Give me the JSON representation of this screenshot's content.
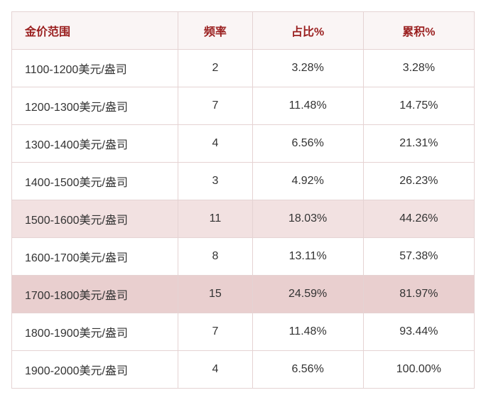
{
  "colors": {
    "border": "#e5d3d3",
    "header_bg": "#faf5f5",
    "header_text": "#9a1f1f",
    "row_text": "#333333",
    "highlight_light": "#f2e1e1",
    "highlight_dark": "#e9cfcf",
    "background": "#ffffff"
  },
  "typography": {
    "font_family": "PingFang SC / Microsoft YaHei",
    "font_size_pt": 12,
    "header_weight": 700
  },
  "table": {
    "type": "table",
    "column_widths_pct": [
      36,
      16,
      24,
      24
    ],
    "columns": [
      "金价范围",
      "频率",
      "占比%",
      "累积%"
    ],
    "rows": [
      {
        "cells": [
          "1100-1200美元/盎司",
          "2",
          "3.28%",
          "3.28%"
        ],
        "highlight": "none"
      },
      {
        "cells": [
          "1200-1300美元/盎司",
          "7",
          "11.48%",
          "14.75%"
        ],
        "highlight": "none"
      },
      {
        "cells": [
          "1300-1400美元/盎司",
          "4",
          "6.56%",
          "21.31%"
        ],
        "highlight": "none"
      },
      {
        "cells": [
          "1400-1500美元/盎司",
          "3",
          "4.92%",
          "26.23%"
        ],
        "highlight": "none"
      },
      {
        "cells": [
          "1500-1600美元/盎司",
          "11",
          "18.03%",
          "44.26%"
        ],
        "highlight": "light"
      },
      {
        "cells": [
          "1600-1700美元/盎司",
          "8",
          "13.11%",
          "57.38%"
        ],
        "highlight": "none"
      },
      {
        "cells": [
          "1700-1800美元/盎司",
          "15",
          "24.59%",
          "81.97%"
        ],
        "highlight": "dark"
      },
      {
        "cells": [
          "1800-1900美元/盎司",
          "7",
          "11.48%",
          "93.44%"
        ],
        "highlight": "none"
      },
      {
        "cells": [
          "1900-2000美元/盎司",
          "4",
          "6.56%",
          "100.00%"
        ],
        "highlight": "none"
      }
    ]
  }
}
